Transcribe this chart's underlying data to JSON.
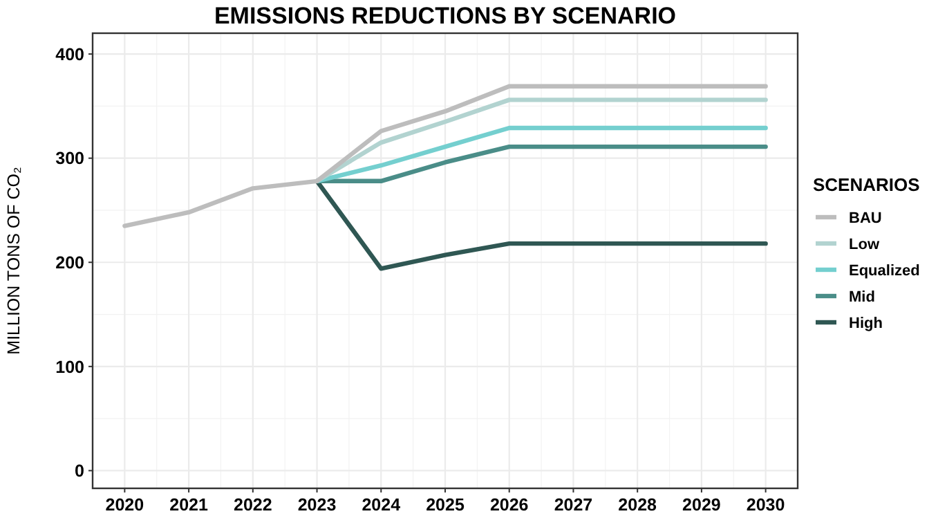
{
  "chart_data": {
    "type": "line",
    "title": "EMISSIONS REDUCTIONS BY SCENARIO",
    "ylabel": "MILLION TONS OF CO₂",
    "legend_title": "SCENARIOS",
    "x": [
      2020,
      2021,
      2022,
      2023,
      2024,
      2025,
      2026,
      2027,
      2028,
      2029,
      2030
    ],
    "series": [
      {
        "name": "BAU",
        "color": "#bdbdbd",
        "values": [
          235,
          248,
          271,
          278,
          326,
          345,
          369,
          369,
          369,
          369,
          369
        ]
      },
      {
        "name": "Low",
        "color": "#b2d3d0",
        "values": [
          null,
          null,
          null,
          278,
          315,
          335,
          356,
          356,
          356,
          356,
          356
        ]
      },
      {
        "name": "Equalized",
        "color": "#74cfcf",
        "values": [
          null,
          null,
          null,
          278,
          293,
          311,
          329,
          329,
          329,
          329,
          329
        ]
      },
      {
        "name": "Mid",
        "color": "#4a8d88",
        "values": [
          null,
          null,
          null,
          278,
          278,
          296,
          311,
          311,
          311,
          311,
          311
        ]
      },
      {
        "name": "High",
        "color": "#2f5753",
        "values": [
          null,
          null,
          null,
          278,
          194,
          207,
          218,
          218,
          218,
          218,
          218
        ]
      }
    ],
    "xlim": [
      2019.5,
      2030.5
    ],
    "xticks": [
      2020,
      2021,
      2022,
      2023,
      2024,
      2025,
      2026,
      2027,
      2028,
      2029,
      2030
    ],
    "ylim": [
      -17,
      420
    ],
    "yticks": [
      0,
      100,
      200,
      300,
      400
    ],
    "grid": true,
    "legend": "right",
    "line_style": "solid",
    "marker": "none"
  }
}
